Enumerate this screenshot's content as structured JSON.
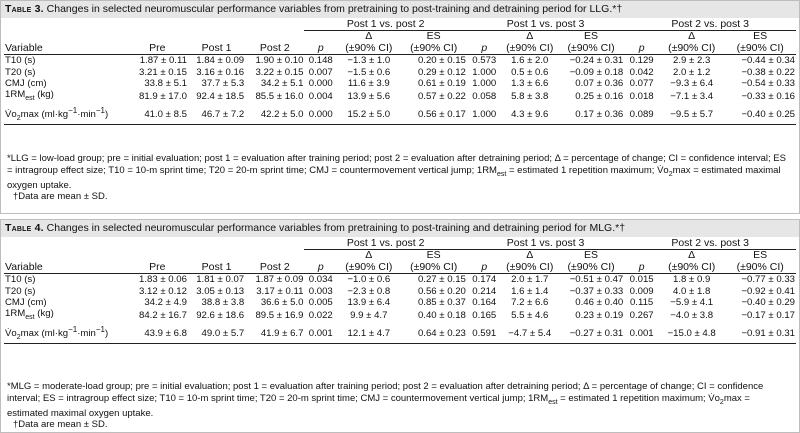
{
  "table3": {
    "label": "Table 3.",
    "caption": "Changes in selected neuromuscular performance variables from pretraining to post-training and detraining period for LLG.*†",
    "groups": [
      "Post 1 vs. post 2",
      "Post 1 vs. post 3",
      "Post 2 vs. post 3"
    ],
    "head_row1": [
      "Δ",
      "ES",
      "Δ",
      "ES",
      "Δ",
      "ES"
    ],
    "head_row2": [
      "Variable",
      "Pre",
      "Post 1",
      "Post 2",
      "p",
      "(±90% CI)",
      "(±90% CI)",
      "p",
      "(±90% CI)",
      "(±90% CI)",
      "p",
      "(±90% CI)",
      "(±90% CI)"
    ],
    "rows": [
      [
        "T10 (s)",
        "1.87 ± 0.11",
        "1.84 ± 0.09",
        "1.90 ± 0.10",
        "0.148",
        "−1.3 ± 1.0",
        "0.20 ± 0.15",
        "0.573",
        "1.6 ± 2.0",
        "−0.24 ± 0.31",
        "0.129",
        "2.9 ± 2.3",
        "−0.44 ± 0.34"
      ],
      [
        "T20 (s)",
        "3.21 ± 0.15",
        "3.16 ± 0.16",
        "3.22 ± 0.15",
        "0.007",
        "−1.5 ± 0.6",
        "0.29 ± 0.12",
        "1.000",
        "0.5 ± 0.6",
        "−0.09 ± 0.18",
        "0.042",
        "2.0 ± 1.2",
        "−0.38 ± 0.22"
      ],
      [
        "CMJ (cm)",
        "33.8 ± 5.1",
        "37.7 ± 5.3",
        "34.2 ± 5.1",
        "0.000",
        "11.6 ± 3.9",
        "0.61 ± 0.19",
        "1.000",
        "1.3 ± 6.6",
        "0.07 ± 0.36",
        "0.077",
        "−9.3 ± 6.4",
        "−0.54 ± 0.33"
      ],
      [
        "1RMest (kg)",
        "81.9 ± 17.0",
        "92.4 ± 18.5",
        "85.5 ± 16.0",
        "0.004",
        "13.9 ± 5.6",
        "0.57 ± 0.22",
        "0.058",
        "5.8 ± 3.8",
        "0.25 ± 0.16",
        "0.018",
        "−7.1 ± 3.4",
        "−0.33 ± 0.16"
      ],
      [
        "V̇o2max (ml·kg−1·min−1)",
        "41.0 ± 8.5",
        "46.7 ± 7.2",
        "42.2 ± 5.0",
        "0.000",
        "15.2 ± 5.0",
        "0.56 ± 0.17",
        "1.000",
        "4.3 ± 9.6",
        "0.17 ± 0.36",
        "0.089",
        "−9.5 ± 5.7",
        "−0.40 ± 0.25"
      ]
    ],
    "footnote": "*LLG = low-load group; pre = initial evaluation; post 1 = evaluation after training period; post 2 = evaluation after detraining period; Δ = percentage of change; CI = confidence interval; ES = intragroup effect size; T10 = 10-m sprint time; T20 = 20-m sprint time; CMJ = countermovement vertical jump; 1RMest = estimated 1 repetition maximum; V̇o2max = estimated maximal oxygen uptake.",
    "dagger": "†Data are mean ± SD."
  },
  "table4": {
    "label": "Table 4.",
    "caption": "Changes in selected neuromuscular performance variables from pretraining to post-training and detraining period for MLG.*†",
    "groups": [
      "Post 1 vs. post 2",
      "Post 1 vs. post 3",
      "Post 2 vs. post 3"
    ],
    "head_row1": [
      "Δ",
      "ES",
      "Δ",
      "ES",
      "Δ",
      "ES"
    ],
    "head_row2": [
      "Variable",
      "Pre",
      "Post 1",
      "Post 2",
      "p",
      "(±90% CI)",
      "(±90% CI)",
      "p",
      "(±90% CI)",
      "(±90% CI)",
      "p",
      "(±90% CI)",
      "(±90% CI)"
    ],
    "rows": [
      [
        "T10 (s)",
        "1.83 ± 0.06",
        "1.81 ± 0.07",
        "1.87 ± 0.09",
        "0.034",
        "−1.0 ± 0.6",
        "0.27 ± 0.15",
        "0.174",
        "2.0 ± 1.7",
        "−0.51 ± 0.47",
        "0.015",
        "1.8 ± 0.9",
        "−0.77 ± 0.33"
      ],
      [
        "T20 (s)",
        "3.12 ± 0.12",
        "3.05 ± 0.13",
        "3.17 ± 0.11",
        "0.003",
        "−2.3 ± 0.8",
        "0.56 ± 0.20",
        "0.214",
        "1.6 ± 1.4",
        "−0.37 ± 0.33",
        "0.009",
        "4.0 ± 1.8",
        "−0.92 ± 0.41"
      ],
      [
        "CMJ (cm)",
        "34.2 ± 4.9",
        "38.8 ± 3.8",
        "36.6 ± 5.0",
        "0.005",
        "13.9 ± 6.4",
        "0.85 ± 0.37",
        "0.164",
        "7.2 ± 6.6",
        "0.46 ± 0.40",
        "0.115",
        "−5.9 ± 4.1",
        "−0.40 ± 0.29"
      ],
      [
        "1RMest (kg)",
        "84.2 ± 16.7",
        "92.6 ± 18.6",
        "89.5 ± 16.9",
        "0.022",
        "9.9 ± 4.7",
        "0.40 ± 0.18",
        "0.165",
        "5.5 ± 4.6",
        "0.23 ± 0.19",
        "0.267",
        "−4.0 ± 3.8",
        "−0.17 ± 0.17"
      ],
      [
        "V̇o2max (ml·kg−1·min−1)",
        "43.9 ± 6.8",
        "49.0 ± 5.7",
        "41.9 ± 6.7",
        "0.001",
        "12.1 ± 4.7",
        "0.64 ± 0.23",
        "0.591",
        "−4.7 ± 5.4",
        "−0.27 ± 0.31",
        "0.001",
        "−15.0 ± 4.8",
        "−0.91 ± 0.31"
      ]
    ],
    "footnote": "*MLG = moderate-load group; pre = initial evaluation; post 1 = evaluation after training period; post 2 = evaluation after detraining period; Δ = percentage of change; CI = confidence interval; ES = intragroup effect size; T10 = 10-m sprint time; T20 = 20-m sprint time; CMJ = countermovement vertical jump; 1RMest = estimated 1 repetition maximum; V̇o2max = estimated maximal oxygen uptake.",
    "dagger": "†Data are mean ± SD."
  }
}
